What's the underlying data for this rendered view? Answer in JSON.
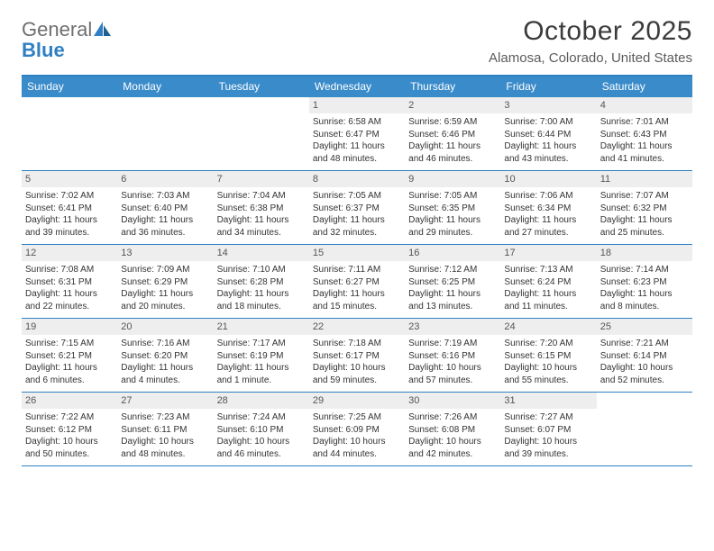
{
  "logo": {
    "general": "General",
    "blue": "Blue"
  },
  "title": "October 2025",
  "location": "Alamosa, Colorado, United States",
  "colors": {
    "accent": "#3a8bca",
    "rule": "#2f80c3",
    "daybg": "#eeeeee",
    "text": "#333333",
    "muted": "#6f6f6f"
  },
  "dow": [
    "Sunday",
    "Monday",
    "Tuesday",
    "Wednesday",
    "Thursday",
    "Friday",
    "Saturday"
  ],
  "weeks": [
    [
      {
        "day": "",
        "sunrise": "",
        "sunset": "",
        "daylight": ""
      },
      {
        "day": "",
        "sunrise": "",
        "sunset": "",
        "daylight": ""
      },
      {
        "day": "",
        "sunrise": "",
        "sunset": "",
        "daylight": ""
      },
      {
        "day": "1",
        "sunrise": "Sunrise: 6:58 AM",
        "sunset": "Sunset: 6:47 PM",
        "daylight": "Daylight: 11 hours and 48 minutes."
      },
      {
        "day": "2",
        "sunrise": "Sunrise: 6:59 AM",
        "sunset": "Sunset: 6:46 PM",
        "daylight": "Daylight: 11 hours and 46 minutes."
      },
      {
        "day": "3",
        "sunrise": "Sunrise: 7:00 AM",
        "sunset": "Sunset: 6:44 PM",
        "daylight": "Daylight: 11 hours and 43 minutes."
      },
      {
        "day": "4",
        "sunrise": "Sunrise: 7:01 AM",
        "sunset": "Sunset: 6:43 PM",
        "daylight": "Daylight: 11 hours and 41 minutes."
      }
    ],
    [
      {
        "day": "5",
        "sunrise": "Sunrise: 7:02 AM",
        "sunset": "Sunset: 6:41 PM",
        "daylight": "Daylight: 11 hours and 39 minutes."
      },
      {
        "day": "6",
        "sunrise": "Sunrise: 7:03 AM",
        "sunset": "Sunset: 6:40 PM",
        "daylight": "Daylight: 11 hours and 36 minutes."
      },
      {
        "day": "7",
        "sunrise": "Sunrise: 7:04 AM",
        "sunset": "Sunset: 6:38 PM",
        "daylight": "Daylight: 11 hours and 34 minutes."
      },
      {
        "day": "8",
        "sunrise": "Sunrise: 7:05 AM",
        "sunset": "Sunset: 6:37 PM",
        "daylight": "Daylight: 11 hours and 32 minutes."
      },
      {
        "day": "9",
        "sunrise": "Sunrise: 7:05 AM",
        "sunset": "Sunset: 6:35 PM",
        "daylight": "Daylight: 11 hours and 29 minutes."
      },
      {
        "day": "10",
        "sunrise": "Sunrise: 7:06 AM",
        "sunset": "Sunset: 6:34 PM",
        "daylight": "Daylight: 11 hours and 27 minutes."
      },
      {
        "day": "11",
        "sunrise": "Sunrise: 7:07 AM",
        "sunset": "Sunset: 6:32 PM",
        "daylight": "Daylight: 11 hours and 25 minutes."
      }
    ],
    [
      {
        "day": "12",
        "sunrise": "Sunrise: 7:08 AM",
        "sunset": "Sunset: 6:31 PM",
        "daylight": "Daylight: 11 hours and 22 minutes."
      },
      {
        "day": "13",
        "sunrise": "Sunrise: 7:09 AM",
        "sunset": "Sunset: 6:29 PM",
        "daylight": "Daylight: 11 hours and 20 minutes."
      },
      {
        "day": "14",
        "sunrise": "Sunrise: 7:10 AM",
        "sunset": "Sunset: 6:28 PM",
        "daylight": "Daylight: 11 hours and 18 minutes."
      },
      {
        "day": "15",
        "sunrise": "Sunrise: 7:11 AM",
        "sunset": "Sunset: 6:27 PM",
        "daylight": "Daylight: 11 hours and 15 minutes."
      },
      {
        "day": "16",
        "sunrise": "Sunrise: 7:12 AM",
        "sunset": "Sunset: 6:25 PM",
        "daylight": "Daylight: 11 hours and 13 minutes."
      },
      {
        "day": "17",
        "sunrise": "Sunrise: 7:13 AM",
        "sunset": "Sunset: 6:24 PM",
        "daylight": "Daylight: 11 hours and 11 minutes."
      },
      {
        "day": "18",
        "sunrise": "Sunrise: 7:14 AM",
        "sunset": "Sunset: 6:23 PM",
        "daylight": "Daylight: 11 hours and 8 minutes."
      }
    ],
    [
      {
        "day": "19",
        "sunrise": "Sunrise: 7:15 AM",
        "sunset": "Sunset: 6:21 PM",
        "daylight": "Daylight: 11 hours and 6 minutes."
      },
      {
        "day": "20",
        "sunrise": "Sunrise: 7:16 AM",
        "sunset": "Sunset: 6:20 PM",
        "daylight": "Daylight: 11 hours and 4 minutes."
      },
      {
        "day": "21",
        "sunrise": "Sunrise: 7:17 AM",
        "sunset": "Sunset: 6:19 PM",
        "daylight": "Daylight: 11 hours and 1 minute."
      },
      {
        "day": "22",
        "sunrise": "Sunrise: 7:18 AM",
        "sunset": "Sunset: 6:17 PM",
        "daylight": "Daylight: 10 hours and 59 minutes."
      },
      {
        "day": "23",
        "sunrise": "Sunrise: 7:19 AM",
        "sunset": "Sunset: 6:16 PM",
        "daylight": "Daylight: 10 hours and 57 minutes."
      },
      {
        "day": "24",
        "sunrise": "Sunrise: 7:20 AM",
        "sunset": "Sunset: 6:15 PM",
        "daylight": "Daylight: 10 hours and 55 minutes."
      },
      {
        "day": "25",
        "sunrise": "Sunrise: 7:21 AM",
        "sunset": "Sunset: 6:14 PM",
        "daylight": "Daylight: 10 hours and 52 minutes."
      }
    ],
    [
      {
        "day": "26",
        "sunrise": "Sunrise: 7:22 AM",
        "sunset": "Sunset: 6:12 PM",
        "daylight": "Daylight: 10 hours and 50 minutes."
      },
      {
        "day": "27",
        "sunrise": "Sunrise: 7:23 AM",
        "sunset": "Sunset: 6:11 PM",
        "daylight": "Daylight: 10 hours and 48 minutes."
      },
      {
        "day": "28",
        "sunrise": "Sunrise: 7:24 AM",
        "sunset": "Sunset: 6:10 PM",
        "daylight": "Daylight: 10 hours and 46 minutes."
      },
      {
        "day": "29",
        "sunrise": "Sunrise: 7:25 AM",
        "sunset": "Sunset: 6:09 PM",
        "daylight": "Daylight: 10 hours and 44 minutes."
      },
      {
        "day": "30",
        "sunrise": "Sunrise: 7:26 AM",
        "sunset": "Sunset: 6:08 PM",
        "daylight": "Daylight: 10 hours and 42 minutes."
      },
      {
        "day": "31",
        "sunrise": "Sunrise: 7:27 AM",
        "sunset": "Sunset: 6:07 PM",
        "daylight": "Daylight: 10 hours and 39 minutes."
      },
      {
        "day": "",
        "sunrise": "",
        "sunset": "",
        "daylight": ""
      }
    ]
  ]
}
